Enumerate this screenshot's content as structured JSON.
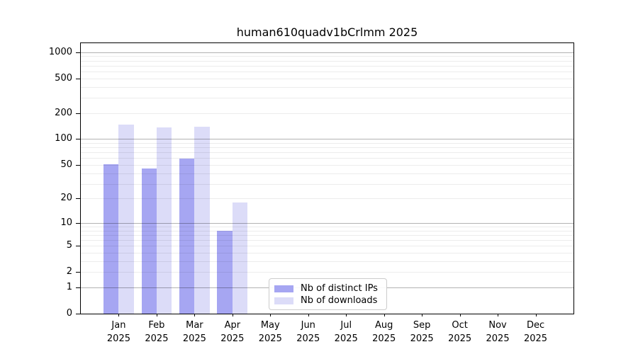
{
  "figure": {
    "title": "human610quadv1bCrlmm 2025"
  },
  "chart_data": {
    "type": "bar",
    "title": "human610quadv1bCrlmm 2025",
    "y_scale": "log1p",
    "xlabel": "",
    "ylabel": "",
    "ylim": [
      0,
      1270
    ],
    "y_ticks": [
      0,
      1,
      2,
      5,
      10,
      20,
      50,
      100,
      200,
      500,
      1000
    ],
    "y_minor_gridlines": [
      3,
      4,
      6,
      7,
      8,
      9,
      30,
      40,
      60,
      70,
      80,
      90,
      300,
      400,
      600,
      700,
      800,
      900
    ],
    "grid": "horizontal",
    "categories": [
      "Jan",
      "Feb",
      "Mar",
      "Apr",
      "May",
      "Jun",
      "Jul",
      "Aug",
      "Sep",
      "Oct",
      "Nov",
      "Dec"
    ],
    "x_tick_year": "2025",
    "series": [
      {
        "name": "Nb of distinct IPs",
        "color": "#a6a6f2",
        "values": [
          51,
          45,
          59,
          8,
          null,
          null,
          null,
          null,
          null,
          null,
          null,
          null
        ]
      },
      {
        "name": "Nb of downloads",
        "color": "#dcdcf8",
        "values": [
          147,
          135,
          139,
          18,
          null,
          null,
          null,
          null,
          null,
          null,
          null,
          null
        ]
      }
    ],
    "legend": {
      "position": "lower center inside",
      "entries": [
        "Nb of distinct IPs",
        "Nb of downloads"
      ]
    }
  },
  "colors": {
    "background": "#ffffff",
    "spine": "#000000",
    "major_grid": "#b3b3b3",
    "minor_grid": "#ececec",
    "text": "#000000"
  }
}
